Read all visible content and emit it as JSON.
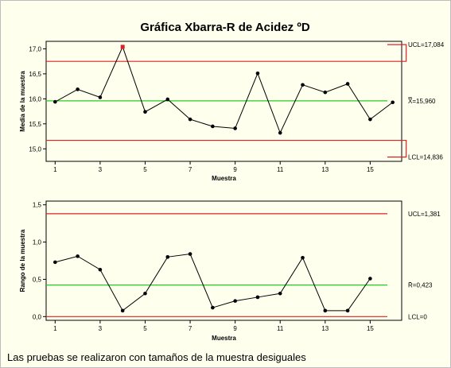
{
  "chart_data": {
    "type": "line",
    "title": "Gráfica Xbarra-R de Acidez ºD",
    "footnote": "Las pruebas se realizaron con tamaños de la muestra desiguales",
    "colors": {
      "background": "#ffffee",
      "data_line": "#000000",
      "center_line": "#22cc22",
      "control_limit": "#dd2222",
      "out_of_control_point": "#dd2222"
    },
    "grid": false,
    "charts": [
      {
        "name": "xbar",
        "ylabel": "Media de la muestra",
        "xlabel": "Muestra",
        "x": [
          1,
          2,
          3,
          4,
          5,
          6,
          7,
          8,
          9,
          10,
          11,
          12,
          13,
          14,
          15,
          16
        ],
        "values": [
          15.94,
          16.19,
          16.03,
          17.04,
          15.74,
          15.99,
          15.59,
          15.45,
          15.41,
          16.51,
          15.32,
          16.28,
          16.13,
          16.3,
          15.59,
          15.93
        ],
        "out_of_control": [
          4
        ],
        "xticks": [
          "1",
          "3",
          "5",
          "7",
          "9",
          "11",
          "13",
          "15"
        ],
        "yticks": [
          "15,0",
          "15,5",
          "16,0",
          "16,5",
          "17,0"
        ],
        "ylim": [
          14.75,
          17.15
        ],
        "center": {
          "value": 15.96,
          "label": "X̿=15,960"
        },
        "ucl": {
          "value": 16.75,
          "last_value": 17.084,
          "label": "UCL=17,084"
        },
        "lcl": {
          "value": 15.17,
          "last_value": 14.836,
          "label": "LCL=14,836"
        }
      },
      {
        "name": "range",
        "ylabel": "Rango de la muestra",
        "xlabel": "Muestra",
        "x": [
          1,
          2,
          3,
          4,
          5,
          6,
          7,
          8,
          9,
          10,
          11,
          12,
          13,
          14,
          15
        ],
        "values": [
          0.73,
          0.81,
          0.63,
          0.08,
          0.31,
          0.8,
          0.84,
          0.12,
          0.21,
          0.26,
          0.31,
          0.79,
          0.08,
          0.08,
          0.51
        ],
        "out_of_control": [],
        "xticks": [
          "1",
          "3",
          "5",
          "7",
          "9",
          "11",
          "13",
          "15"
        ],
        "yticks": [
          "0,0",
          "0,5",
          "1,0",
          "1,5"
        ],
        "ylim": [
          -0.05,
          1.55
        ],
        "center": {
          "value": 0.423,
          "label": "R̄=0,423"
        },
        "ucl": {
          "value": 1.381,
          "label": "UCL=1,381"
        },
        "lcl": {
          "value": 0,
          "label": "LCL=0"
        }
      }
    ]
  }
}
